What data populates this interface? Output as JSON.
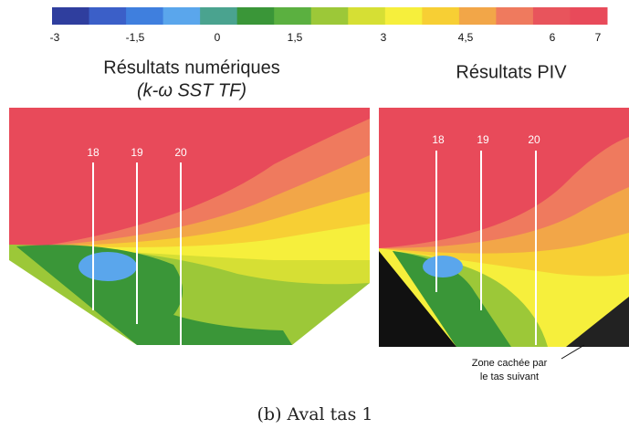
{
  "colorbar": {
    "colors": [
      "#2f3e9e",
      "#3b5fc8",
      "#3f7fde",
      "#5aa6ec",
      "#4aa38f",
      "#3a9638",
      "#5bb040",
      "#9cc838",
      "#d6df34",
      "#f6ef3c",
      "#f7cf34",
      "#f2a648",
      "#ef7a5e",
      "#e8545c",
      "#e84a5a"
    ],
    "tick_labels": [
      "-3",
      "-1,5",
      "0",
      "1,5",
      "3",
      "4,5",
      "6",
      "7"
    ]
  },
  "left_panel": {
    "title": "Résultats numériques",
    "subtitle": "(k-ω SST TF)",
    "line_labels": [
      "18",
      "19",
      "20"
    ]
  },
  "right_panel": {
    "title": "Résultats PIV",
    "line_labels": [
      "18",
      "19",
      "20"
    ],
    "annotation": [
      "Zone cachée par",
      "le tas suivant"
    ]
  },
  "caption": "(b) Aval tas 1"
}
